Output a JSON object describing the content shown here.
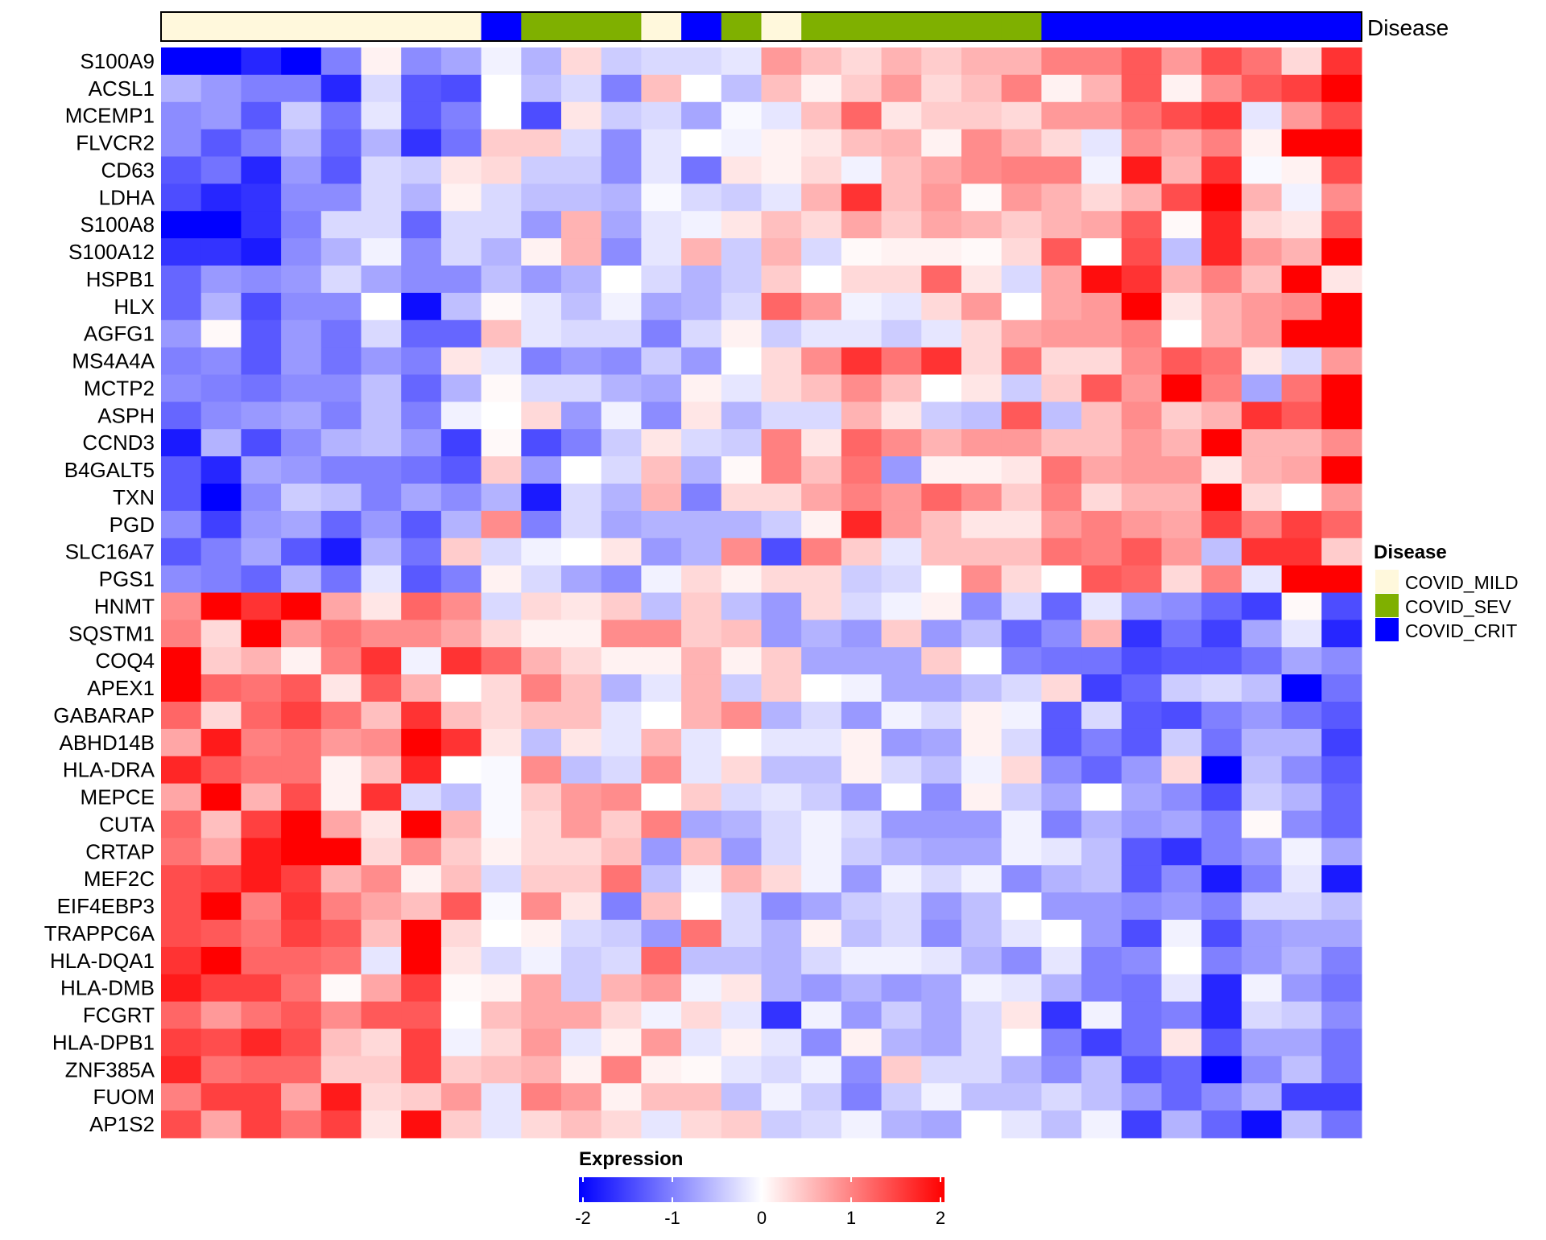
{
  "chart_data": {
    "type": "heatmap",
    "title": "",
    "annotation": {
      "name": "Disease",
      "legend_title": "Disease",
      "levels": [
        {
          "label": "COVID_MILD",
          "color": "#FFF8DC"
        },
        {
          "label": "COVID_SEV",
          "color": "#7FB000"
        },
        {
          "label": "COVID_CRIT",
          "color": "#0000FF"
        }
      ],
      "columns": [
        "COVID_MILD",
        "COVID_MILD",
        "COVID_MILD",
        "COVID_MILD",
        "COVID_MILD",
        "COVID_MILD",
        "COVID_MILD",
        "COVID_MILD",
        "COVID_CRIT",
        "COVID_SEV",
        "COVID_SEV",
        "COVID_SEV",
        "COVID_MILD",
        "COVID_CRIT",
        "COVID_SEV",
        "COVID_MILD",
        "COVID_SEV",
        "COVID_SEV",
        "COVID_SEV",
        "COVID_SEV",
        "COVID_SEV",
        "COVID_SEV",
        "COVID_CRIT",
        "COVID_CRIT",
        "COVID_CRIT",
        "COVID_CRIT",
        "COVID_CRIT",
        "COVID_CRIT",
        "COVID_CRIT",
        "COVID_CRIT"
      ]
    },
    "colorbar": {
      "title": "Expression",
      "range": [
        -2,
        2
      ],
      "ticks": [
        "-2",
        "-1",
        "0",
        "1",
        "2"
      ],
      "colors": {
        "low": "#0000FF",
        "mid": "#FFFFFF",
        "high": "#FF0000"
      }
    },
    "rows": [
      "S100A9",
      "ACSL1",
      "MCEMP1",
      "FLVCR2",
      "CD63",
      "LDHA",
      "S100A8",
      "S100A12",
      "HSPB1",
      "HLX",
      "AGFG1",
      "MS4A4A",
      "MCTP2",
      "ASPH",
      "CCND3",
      "B4GALT5",
      "TXN",
      "PGD",
      "SLC16A7",
      "PGS1",
      "HNMT",
      "SQSTM1",
      "COQ4",
      "APEX1",
      "GABARAP",
      "ABHD14B",
      "HLA-DRA",
      "MEPCE",
      "CUTA",
      "CRTAP",
      "MEF2C",
      "EIF4EBP3",
      "TRAPPC6A",
      "HLA-DQA1",
      "HLA-DMB",
      "FCGRT",
      "HLA-DPB1",
      "ZNF385A",
      "FUOM",
      "AP1S2"
    ],
    "values": [
      [
        -2,
        -2,
        -1.7,
        -2,
        -1,
        0.1,
        -0.9,
        -0.7,
        -0.1,
        -0.6,
        0.3,
        -0.4,
        -0.3,
        -0.3,
        -0.2,
        0.8,
        0.5,
        0.3,
        0.6,
        0.4,
        0.6,
        0.6,
        1,
        1,
        1.3,
        0.8,
        1.4,
        1.1,
        0.3,
        1.6
      ],
      [
        -0.6,
        -0.8,
        -1,
        -1,
        -1.7,
        -0.3,
        -1.3,
        -1.4,
        0,
        -0.5,
        -0.3,
        -1,
        0.5,
        0,
        -0.5,
        0.5,
        0.1,
        0.4,
        0.8,
        0.3,
        0.5,
        1,
        0.1,
        0.6,
        1.3,
        0.1,
        0.9,
        1.3,
        1.5,
        2
      ],
      [
        -0.9,
        -0.8,
        -1.3,
        -0.4,
        -1.1,
        -0.2,
        -1.3,
        -1,
        0,
        -1.4,
        0.2,
        -0.4,
        -0.3,
        -0.7,
        -0.05,
        -0.2,
        0.5,
        1.2,
        0.2,
        0.4,
        0.4,
        0.3,
        0.8,
        0.8,
        1.1,
        1.4,
        1.6,
        -0.2,
        0.8,
        1.4
      ],
      [
        -0.9,
        -1.3,
        -1,
        -0.6,
        -1.2,
        -0.6,
        -1.6,
        -1.1,
        0.4,
        0.4,
        -0.3,
        -0.9,
        -0.2,
        0,
        -0.1,
        0.1,
        0.2,
        0.5,
        0.6,
        0.1,
        0.9,
        0.6,
        0.3,
        -0.2,
        0.9,
        0.7,
        1,
        0.1,
        2,
        2
      ],
      [
        -1.3,
        -1.1,
        -1.7,
        -0.8,
        -1.3,
        -0.3,
        -0.4,
        0.2,
        0.3,
        -0.4,
        -0.4,
        -0.9,
        -0.2,
        -1.1,
        0.2,
        0.1,
        0.3,
        -0.1,
        0.5,
        0.7,
        0.9,
        1,
        1,
        -0.1,
        1.8,
        0.6,
        1.6,
        -0.05,
        0.1,
        1.4
      ],
      [
        -1.4,
        -1.7,
        -1.6,
        -0.9,
        -0.9,
        -0.3,
        -0.6,
        0.1,
        -0.3,
        -0.5,
        -0.5,
        -0.6,
        -0.05,
        -0.3,
        -0.4,
        -0.2,
        0.6,
        1.6,
        0.5,
        0.8,
        0.05,
        0.8,
        0.6,
        0.3,
        0.6,
        1.4,
        2,
        0.6,
        -0.1,
        0.9
      ],
      [
        -2,
        -2,
        -1.6,
        -1,
        -0.3,
        -0.3,
        -1.2,
        -0.3,
        -0.3,
        -0.8,
        0.6,
        -0.7,
        -0.2,
        -0.1,
        0.2,
        0.5,
        0.3,
        0.7,
        0.4,
        0.7,
        0.6,
        0.4,
        0.6,
        0.7,
        1.3,
        0.05,
        1.7,
        0.3,
        0.2,
        1.3
      ],
      [
        -1.6,
        -1.6,
        -1.8,
        -0.9,
        -0.6,
        -0.1,
        -0.9,
        -0.3,
        -0.6,
        0.1,
        0.6,
        -0.9,
        -0.2,
        0.6,
        -0.4,
        0.6,
        -0.3,
        0.05,
        0.1,
        0.1,
        0.05,
        0.3,
        1.3,
        0,
        1.4,
        -0.5,
        1.7,
        0.8,
        0.6,
        2
      ],
      [
        -1.2,
        -0.8,
        -0.9,
        -0.8,
        -0.3,
        -0.7,
        -0.9,
        -0.9,
        -0.5,
        -0.8,
        -0.6,
        0,
        -0.3,
        -0.6,
        -0.4,
        0.4,
        0,
        0.3,
        0.3,
        1.2,
        0.2,
        -0.3,
        0.7,
        1.9,
        1.6,
        0.6,
        1,
        0.5,
        2,
        0.2
      ],
      [
        -1.2,
        -0.6,
        -1.4,
        -0.9,
        -0.9,
        0,
        -1.9,
        -0.5,
        0.05,
        -0.2,
        -0.5,
        -0.1,
        -0.7,
        -0.6,
        -0.3,
        1.2,
        0.8,
        -0.1,
        -0.2,
        0.3,
        0.8,
        0,
        0.7,
        0.8,
        2,
        0.2,
        0.6,
        0.8,
        0.9,
        2
      ],
      [
        -0.8,
        0.05,
        -1.3,
        -0.8,
        -1.1,
        -0.3,
        -1.2,
        -1.2,
        0.5,
        -0.2,
        -0.3,
        -0.3,
        -1,
        -0.3,
        0.1,
        -0.4,
        -0.2,
        -0.2,
        -0.4,
        -0.2,
        0.3,
        0.7,
        0.8,
        0.8,
        1,
        0,
        0.6,
        0.8,
        2,
        2
      ],
      [
        -1,
        -0.9,
        -1.3,
        -0.8,
        -1.1,
        -0.8,
        -1,
        0.2,
        -0.2,
        -1,
        -0.8,
        -0.9,
        -0.4,
        -0.8,
        0,
        0.3,
        0.9,
        1.6,
        1.1,
        1.6,
        0.3,
        1.1,
        0.3,
        0.3,
        0.9,
        1.3,
        1.1,
        0.2,
        -0.3,
        0.8
      ],
      [
        -0.9,
        -1,
        -1.1,
        -0.9,
        -0.9,
        -0.5,
        -1.2,
        -0.6,
        0.05,
        -0.3,
        -0.3,
        -0.6,
        -0.7,
        0.1,
        -0.2,
        0.3,
        0.5,
        0.9,
        0.5,
        0,
        0.2,
        -0.4,
        0.4,
        1.3,
        0.8,
        2,
        1,
        -0.7,
        1.1,
        2
      ],
      [
        -1.2,
        -0.9,
        -0.8,
        -0.7,
        -1,
        -0.5,
        -1,
        -0.1,
        0,
        0.3,
        -0.8,
        -0.1,
        -0.9,
        0.2,
        -0.6,
        -0.3,
        -0.3,
        0.6,
        0.2,
        -0.4,
        -0.5,
        1.3,
        -0.5,
        0.5,
        0.9,
        0.4,
        0.6,
        1.6,
        1.3,
        2
      ],
      [
        -1.8,
        -0.6,
        -1.4,
        -0.9,
        -0.6,
        -0.5,
        -0.8,
        -1.5,
        0.05,
        -1.4,
        -1,
        -0.4,
        0.2,
        -0.3,
        -0.4,
        1,
        0.2,
        1.2,
        0.9,
        0.6,
        0.8,
        0.8,
        0.5,
        0.5,
        0.8,
        0.6,
        2,
        0.6,
        0.6,
        0.9
      ],
      [
        -1.3,
        -1.7,
        -0.7,
        -0.8,
        -1,
        -1,
        -1.1,
        -1.3,
        0.4,
        -0.8,
        0,
        -0.3,
        0.5,
        -0.6,
        0.05,
        1,
        0.5,
        1.1,
        -0.8,
        0.1,
        0.1,
        0.2,
        1.1,
        0.7,
        0.8,
        0.8,
        0.2,
        0.6,
        0.7,
        2
      ],
      [
        -1.3,
        -2,
        -0.9,
        -0.4,
        -0.5,
        -1,
        -0.7,
        -0.9,
        -0.6,
        -1.8,
        -0.3,
        -0.6,
        0.6,
        -1,
        0.3,
        0.3,
        0.7,
        1,
        0.8,
        1.2,
        0.9,
        0.4,
        1,
        0.3,
        0.6,
        0.6,
        2,
        0.3,
        0,
        0.8
      ],
      [
        -0.9,
        -1.5,
        -0.8,
        -0.7,
        -1.2,
        -0.8,
        -1.3,
        -0.6,
        0.9,
        -1,
        -0.3,
        -0.7,
        -0.6,
        -0.6,
        -0.6,
        -0.4,
        0.1,
        1.7,
        0.8,
        0.5,
        0.2,
        0.2,
        0.8,
        1,
        0.8,
        0.7,
        1.5,
        1,
        1.5,
        1.2
      ],
      [
        -1.3,
        -1,
        -0.7,
        -1.3,
        -1.8,
        -0.6,
        -1.1,
        0.4,
        -0.3,
        -0.1,
        0,
        0.2,
        -0.8,
        -0.6,
        0.9,
        -1.4,
        1,
        0.4,
        -0.2,
        0.5,
        0.5,
        0.5,
        1.1,
        1,
        1.3,
        0.8,
        -0.5,
        1.6,
        1.6,
        0.4
      ],
      [
        -0.9,
        -1,
        -1.2,
        -0.6,
        -1.1,
        -0.2,
        -1.3,
        -1,
        0.1,
        -0.3,
        -0.7,
        -0.9,
        -0.1,
        0.3,
        0.1,
        0.3,
        0.3,
        -0.4,
        -0.3,
        0,
        0.9,
        0.3,
        0,
        1.3,
        1.2,
        0.3,
        1,
        -0.2,
        2,
        2
      ],
      [
        0.9,
        2,
        1.6,
        2,
        0.7,
        0.2,
        1.2,
        0.9,
        -0.3,
        0.3,
        0.2,
        0.4,
        -0.5,
        0.4,
        -0.5,
        -0.8,
        0.3,
        -0.3,
        -0.1,
        0.1,
        -0.9,
        -0.3,
        -1.2,
        -0.2,
        -0.8,
        -0.9,
        -1.2,
        -1.5,
        0.05,
        -1.4
      ],
      [
        1,
        0.3,
        2,
        0.8,
        1.1,
        0.9,
        0.9,
        0.7,
        0.3,
        0.1,
        0.1,
        0.9,
        0.9,
        0.4,
        0.5,
        -0.8,
        -0.6,
        -0.8,
        0.4,
        -0.8,
        -0.5,
        -1.2,
        -0.9,
        0.6,
        -1.6,
        -1.1,
        -1.5,
        -0.7,
        -0.2,
        -1.7
      ],
      [
        2,
        0.4,
        0.6,
        0.1,
        1,
        1.6,
        -0.1,
        1.6,
        1.2,
        0.6,
        0.3,
        0.1,
        0.1,
        0.6,
        0.1,
        0.4,
        -0.7,
        -0.7,
        -0.7,
        0.4,
        0,
        -1,
        -1.1,
        -1.1,
        -1.4,
        -1.3,
        -1.3,
        -1.1,
        -0.7,
        -0.9
      ],
      [
        2,
        1.2,
        1.1,
        1.3,
        0.2,
        1.3,
        0.6,
        0,
        0.3,
        1,
        0.5,
        -0.6,
        -0.2,
        0.6,
        -0.4,
        0.4,
        0,
        -0.1,
        -0.7,
        -0.7,
        -0.5,
        -0.3,
        0.3,
        -1.5,
        -1.2,
        -0.4,
        -0.3,
        -0.5,
        -2,
        -1.1
      ],
      [
        1.2,
        0.3,
        1.2,
        1.5,
        1.1,
        0.5,
        1.6,
        0.5,
        0.3,
        0.5,
        0.5,
        -0.2,
        0,
        0.6,
        0.9,
        -0.6,
        -0.3,
        -0.8,
        -0.1,
        -0.3,
        0.1,
        -0.1,
        -1.3,
        -0.3,
        -1.3,
        -1.4,
        -1,
        -0.8,
        -1.1,
        -1.3
      ],
      [
        0.7,
        1.8,
        1,
        1.1,
        0.8,
        0.9,
        2,
        1.6,
        0.2,
        -0.5,
        0.2,
        -0.2,
        0.6,
        -0.2,
        0,
        -0.2,
        -0.2,
        0.1,
        -0.8,
        -0.7,
        0.1,
        -0.3,
        -1.3,
        -1,
        -1.3,
        -0.4,
        -1.1,
        -0.6,
        -0.6,
        -1.5
      ],
      [
        1.7,
        1.3,
        1.1,
        1.1,
        0.1,
        0.5,
        1.7,
        0,
        -0.05,
        0.9,
        -0.5,
        -0.3,
        0.9,
        -0.2,
        0.3,
        -0.5,
        -0.5,
        0.1,
        -0.3,
        -0.5,
        -0.1,
        0.3,
        -0.9,
        -1.2,
        -0.8,
        0.3,
        -2,
        -0.5,
        -0.9,
        -1.3
      ],
      [
        0.7,
        2,
        0.6,
        1.4,
        0.1,
        1.6,
        -0.3,
        -0.5,
        -0.05,
        0.4,
        0.8,
        0.9,
        0,
        0.4,
        -0.3,
        -0.2,
        -0.4,
        -0.8,
        0,
        -0.9,
        0.1,
        -0.4,
        -0.7,
        0,
        -0.7,
        -0.9,
        -1.4,
        -0.4,
        -0.6,
        -1.2
      ],
      [
        1.2,
        0.5,
        1.5,
        2,
        0.7,
        0.2,
        2,
        0.6,
        -0.05,
        0.3,
        0.8,
        0.4,
        1,
        -0.7,
        -0.6,
        -0.3,
        -0.1,
        -0.3,
        -0.8,
        -0.8,
        -0.8,
        -0.1,
        -1,
        -0.6,
        -0.8,
        -0.7,
        -1,
        0.05,
        -0.9,
        -1.2
      ],
      [
        1.1,
        0.7,
        1.8,
        2,
        2,
        0.3,
        0.9,
        0.4,
        0.1,
        0.3,
        0.3,
        0.5,
        -0.8,
        0.5,
        -0.8,
        -0.3,
        -0.1,
        -0.4,
        -0.6,
        -0.7,
        -0.7,
        -0.1,
        -0.2,
        -0.5,
        -1.3,
        -1.6,
        -1,
        -0.8,
        -0.1,
        -0.7
      ],
      [
        1.4,
        1.5,
        1.8,
        1.5,
        0.6,
        0.9,
        0.1,
        0.5,
        -0.3,
        0.4,
        0.4,
        1.1,
        -0.5,
        -0.1,
        0.6,
        0.3,
        -0.1,
        -0.8,
        -0.1,
        -0.3,
        -0.1,
        -0.9,
        -0.6,
        -0.5,
        -1.3,
        -0.9,
        -1.8,
        -1,
        -0.2,
        -1.8
      ],
      [
        1.4,
        2,
        1,
        1.6,
        1,
        0.7,
        0.5,
        1.3,
        -0.05,
        0.9,
        0.2,
        -1,
        0.5,
        0,
        -0.3,
        -0.9,
        -0.7,
        -0.4,
        -0.3,
        -0.8,
        -0.5,
        0,
        -0.8,
        -0.8,
        -0.9,
        -0.8,
        -1,
        -0.3,
        -0.3,
        -0.5
      ],
      [
        1.4,
        1.3,
        1.1,
        1.5,
        1.3,
        0.5,
        2,
        0.3,
        0,
        0.1,
        -0.3,
        -0.4,
        -0.8,
        1.1,
        -0.3,
        -0.6,
        0.1,
        -0.5,
        -0.3,
        -0.9,
        -0.5,
        -0.2,
        0,
        -0.8,
        -1.4,
        -0.1,
        -1.4,
        -0.8,
        -0.7,
        -0.7
      ],
      [
        1.6,
        2,
        1.2,
        1.2,
        1.1,
        -0.2,
        2,
        0.2,
        -0.3,
        -0.1,
        -0.4,
        -0.3,
        1.2,
        -0.5,
        -0.5,
        -0.6,
        -0.3,
        -0.1,
        -0.1,
        -0.2,
        -0.6,
        -0.9,
        -0.2,
        -1,
        -0.9,
        0,
        -1,
        -0.8,
        -0.6,
        -1
      ],
      [
        1.8,
        1.5,
        1.5,
        1.1,
        0.05,
        0.7,
        1.5,
        0.05,
        0.1,
        0.7,
        -0.4,
        0.6,
        0.8,
        -0.1,
        0.2,
        -0.6,
        -0.8,
        -0.6,
        -0.8,
        -0.7,
        -0.1,
        -0.2,
        -0.6,
        -1,
        -1.1,
        -0.2,
        -1.7,
        -0.1,
        -0.8,
        -1.1
      ],
      [
        1.2,
        0.8,
        1.1,
        1.3,
        0.9,
        1.3,
        1.3,
        0,
        0.5,
        0.7,
        0.7,
        0.3,
        -0.1,
        0.3,
        -0.2,
        -1.6,
        -0.1,
        -0.8,
        -0.4,
        -0.7,
        -0.3,
        0.2,
        -1.6,
        -0.1,
        -1.1,
        -1,
        -1.7,
        -0.3,
        -0.4,
        -0.9
      ],
      [
        1.5,
        1.4,
        1.7,
        1.4,
        0.5,
        0.3,
        1.5,
        -0.1,
        0.3,
        0.8,
        -0.2,
        0.1,
        0.8,
        -0.2,
        0.1,
        -0.2,
        -0.9,
        0.1,
        -0.6,
        -0.7,
        -0.3,
        0,
        -1,
        -1.5,
        -1.1,
        0.2,
        -1.3,
        -0.7,
        -0.7,
        -1.1
      ],
      [
        1.7,
        1.1,
        1.2,
        1.2,
        0.4,
        0.4,
        1.5,
        0.4,
        0.5,
        0.6,
        0.1,
        1,
        0.1,
        0.05,
        -0.2,
        -0.3,
        -0.1,
        -0.9,
        0.4,
        -0.3,
        -0.3,
        -0.6,
        -0.9,
        -0.5,
        -1.4,
        -1.2,
        -2,
        -0.9,
        -0.5,
        -1.1
      ],
      [
        1,
        1.5,
        1.5,
        0.7,
        1.8,
        0.3,
        0.4,
        0.8,
        -0.2,
        1,
        0.8,
        0.1,
        0.5,
        0.5,
        -0.5,
        -0.1,
        -0.4,
        -1,
        -0.4,
        -0.1,
        -0.5,
        -0.5,
        -0.3,
        -0.5,
        -0.8,
        -1.2,
        -0.9,
        -0.6,
        -1.5,
        -1.5
      ],
      [
        1.4,
        0.7,
        1.5,
        1.1,
        1.5,
        0.2,
        1.9,
        0.4,
        -0.2,
        0.3,
        0.5,
        0.3,
        -0.2,
        0.3,
        0.4,
        -0.4,
        -0.3,
        -0.1,
        -0.6,
        -0.7,
        0,
        -0.2,
        -0.5,
        -0.1,
        -1.5,
        -0.6,
        -1.2,
        -1.9,
        -0.5,
        -1.1
      ]
    ]
  }
}
